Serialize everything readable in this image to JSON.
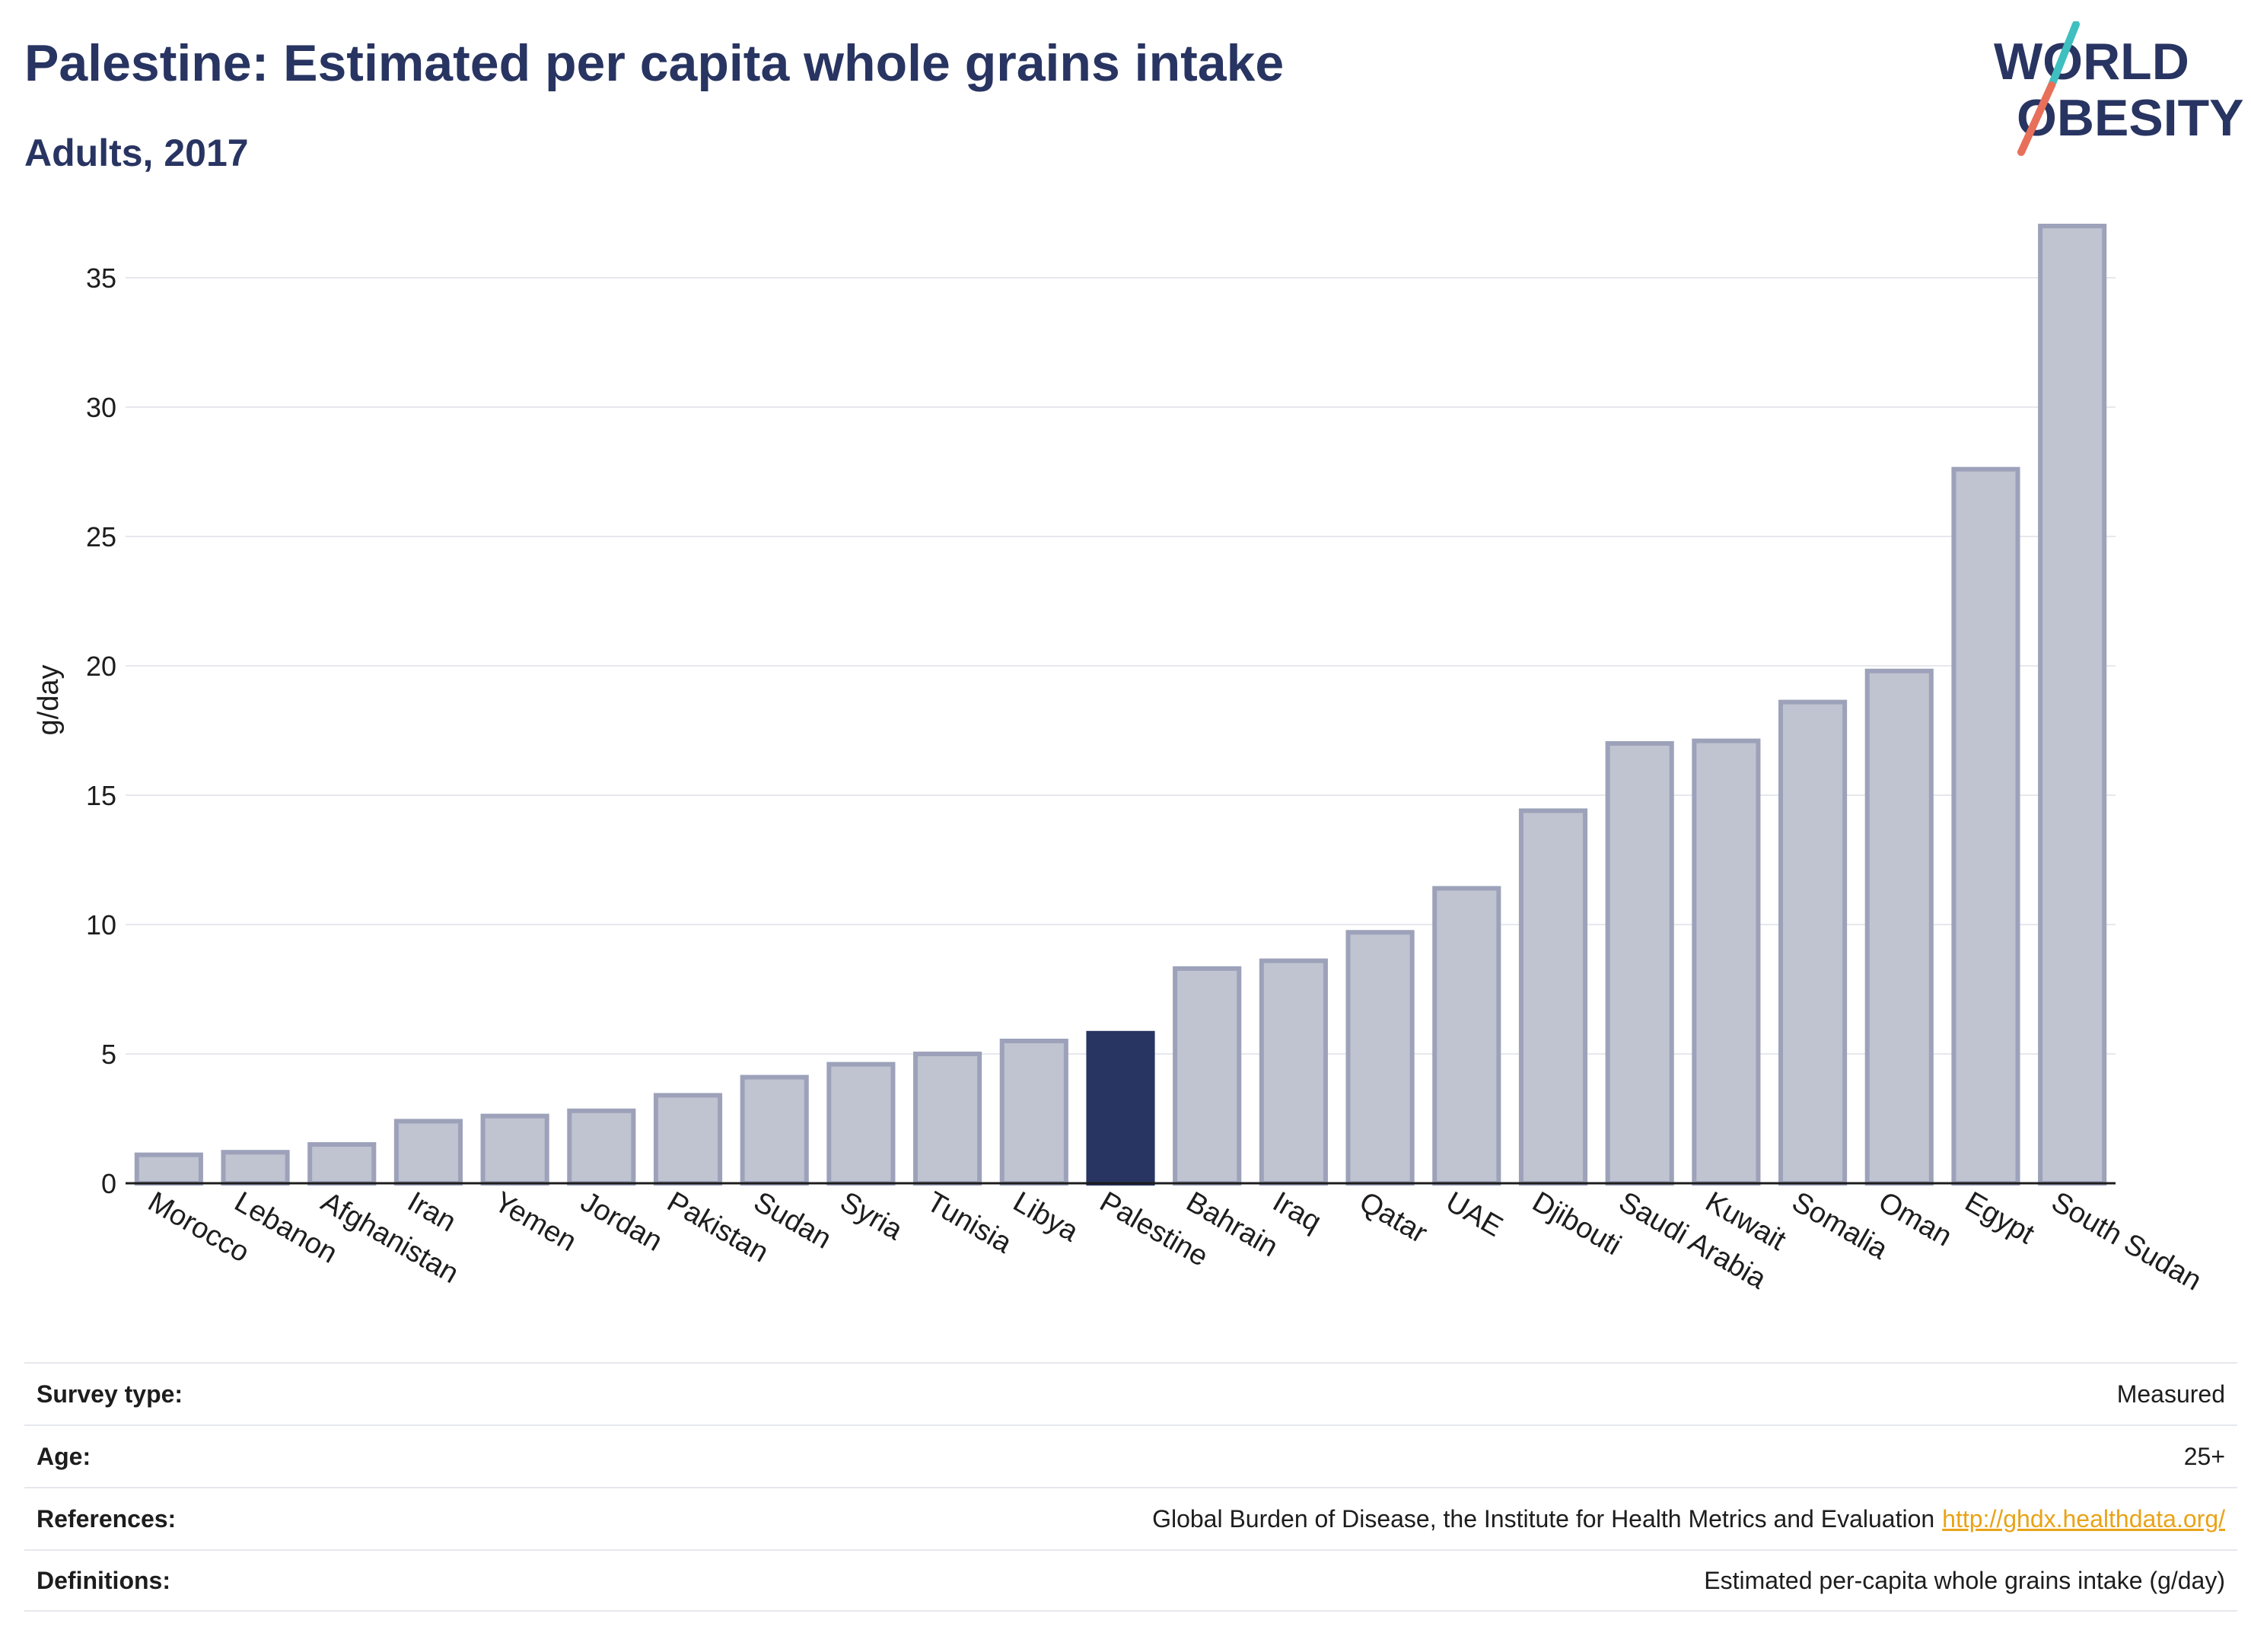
{
  "header": {
    "title": "Palestine: Estimated per capita whole grains intake",
    "subtitle": "Adults, 2017"
  },
  "logo": {
    "line1": "WORLD",
    "line2": "OBESITY"
  },
  "chart_data": {
    "type": "bar",
    "title": "Palestine: Estimated per capita whole grains intake",
    "subtitle": "Adults, 2017",
    "xlabel": "",
    "ylabel": "g/day",
    "ylim": [
      0,
      37.5
    ],
    "yticks": [
      0,
      5,
      10,
      15,
      20,
      25,
      30,
      35
    ],
    "grid": true,
    "highlight": "Palestine",
    "categories": [
      "Morocco",
      "Lebanon",
      "Afghanistan",
      "Iran",
      "Yemen",
      "Jordan",
      "Pakistan",
      "Sudan",
      "Syria",
      "Tunisia",
      "Libya",
      "Palestine",
      "Bahrain",
      "Iraq",
      "Qatar",
      "UAE",
      "Djibouti",
      "Saudi Arabia",
      "Kuwait",
      "Somalia",
      "Oman",
      "Egypt",
      "South Sudan"
    ],
    "values": [
      1.1,
      1.2,
      1.5,
      2.4,
      2.6,
      2.8,
      3.4,
      4.1,
      4.6,
      5.0,
      5.5,
      5.8,
      8.3,
      8.6,
      9.7,
      11.4,
      14.4,
      17.0,
      17.1,
      18.6,
      19.8,
      27.6,
      37.0
    ],
    "colors": {
      "bar_fill": "#c0c3d0",
      "bar_stroke": "#9da2ba",
      "highlight": "#283461",
      "grid": "#e6e8ee",
      "axis": "#1d1d1d"
    }
  },
  "info_table": {
    "survey_type": {
      "label": "Survey type:",
      "value": "Measured"
    },
    "age": {
      "label": "Age:",
      "value": "25+"
    },
    "references": {
      "label": "References:",
      "value": "Global Burden of Disease, the Institute for Health Metrics and Evaluation",
      "link": "http://ghdx.healthdata.org/"
    },
    "definitions": {
      "label": "Definitions:",
      "value": "Estimated per-capita whole grains intake (g/day)"
    }
  },
  "colors": {
    "title": "#283461",
    "logo_teal": "#3fbfbf",
    "logo_coral": "#e8705a",
    "link": "#e8a317"
  }
}
